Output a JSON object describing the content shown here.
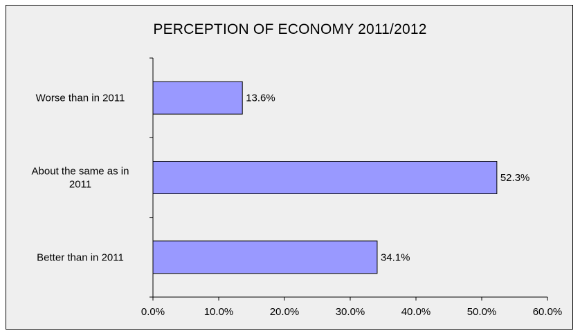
{
  "chart_data": {
    "type": "bar",
    "orientation": "horizontal",
    "title": "PERCEPTION OF ECONOMY 2011/2012",
    "categories": [
      [
        "Worse than in 2011"
      ],
      [
        "About the same as in",
        "2011"
      ],
      [
        "Better than in 2011"
      ]
    ],
    "values": [
      13.6,
      52.3,
      34.1
    ],
    "data_labels": [
      "13.6%",
      "52.3%",
      "34.1%"
    ],
    "xlabel": "",
    "ylabel": "",
    "xlim": [
      0,
      60
    ],
    "x_ticks": [
      0,
      10,
      20,
      30,
      40,
      50,
      60
    ],
    "x_tick_labels": [
      "0.0%",
      "10.0%",
      "20.0%",
      "30.0%",
      "40.0%",
      "50.0%",
      "60.0%"
    ],
    "grid": false,
    "legend": "none",
    "colors": {
      "bar_fill": "#9999ff",
      "bar_stroke": "#000000",
      "plot_background": "#efefef",
      "axis": "#000000"
    }
  }
}
